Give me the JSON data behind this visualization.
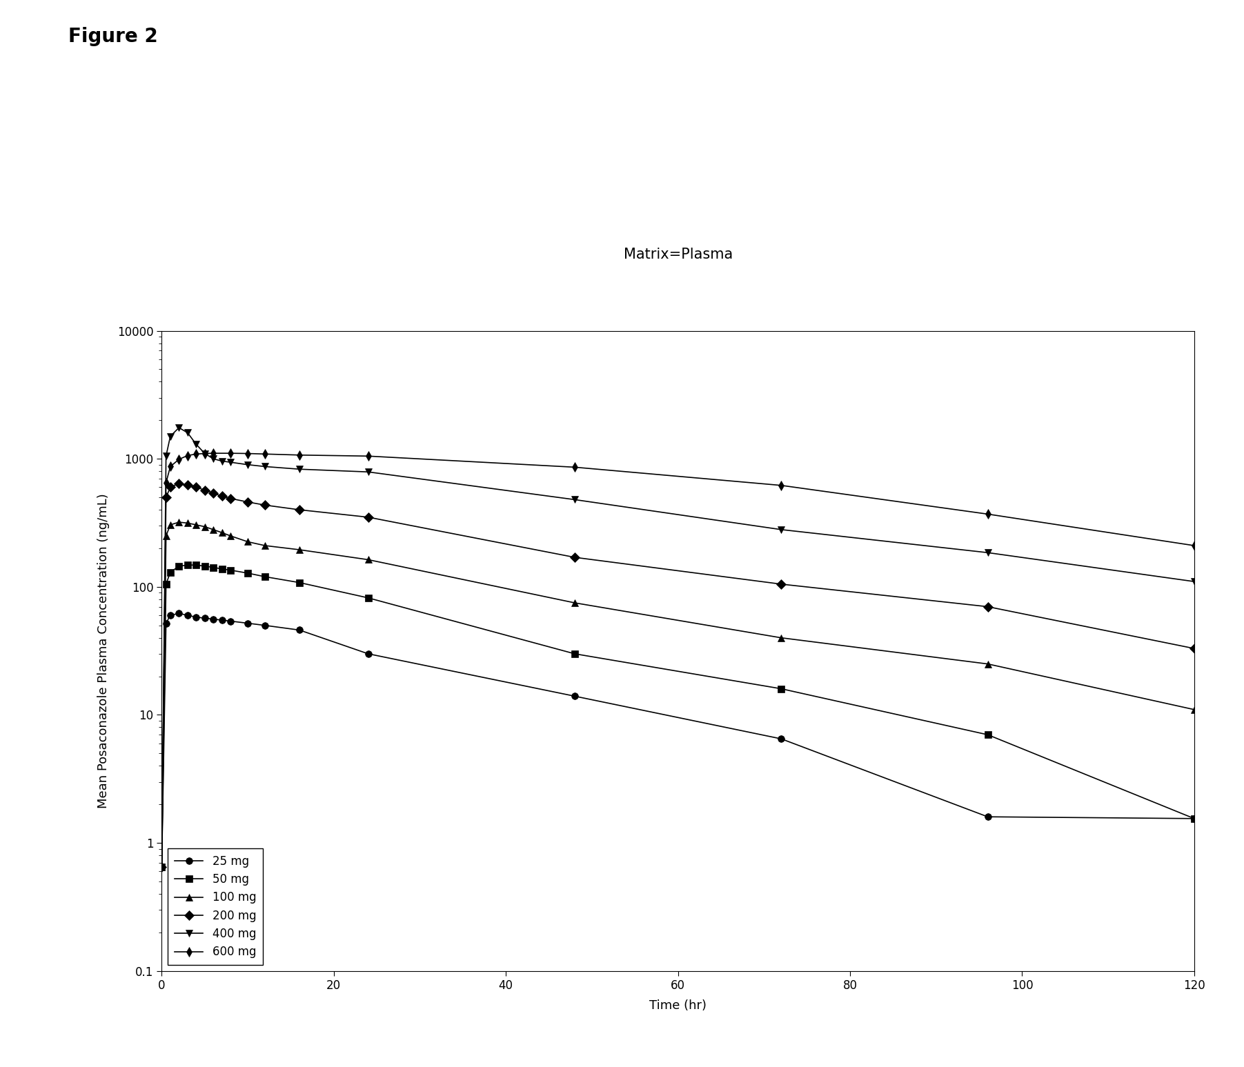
{
  "title": "Matrix=Plasma",
  "figure_label": "Figure 2",
  "xlabel": "Time (hr)",
  "ylabel": "Mean Posaconazole Plasma Concentration (ng/mL)",
  "xlim": [
    0,
    120
  ],
  "ylim": [
    0.1,
    10000
  ],
  "xticks": [
    0,
    20,
    40,
    60,
    80,
    100,
    120
  ],
  "series": [
    {
      "label": "25 mg",
      "marker": "o",
      "time": [
        0,
        0.5,
        1,
        2,
        3,
        4,
        5,
        6,
        7,
        8,
        10,
        12,
        16,
        24,
        48,
        72,
        96,
        120
      ],
      "conc": [
        0.65,
        52,
        60,
        62,
        60,
        58,
        57,
        56,
        55,
        54,
        52,
        50,
        46,
        30,
        14,
        6.5,
        1.6,
        1.55
      ]
    },
    {
      "label": "50 mg",
      "marker": "s",
      "time": [
        0,
        0.5,
        1,
        2,
        3,
        4,
        5,
        6,
        7,
        8,
        10,
        12,
        16,
        24,
        48,
        72,
        96,
        120
      ],
      "conc": [
        0.65,
        105,
        130,
        145,
        148,
        148,
        145,
        142,
        138,
        135,
        128,
        120,
        108,
        82,
        30,
        16,
        7,
        1.55
      ]
    },
    {
      "label": "100 mg",
      "marker": "^",
      "time": [
        0,
        0.5,
        1,
        2,
        3,
        4,
        5,
        6,
        7,
        8,
        10,
        12,
        16,
        24,
        48,
        72,
        96,
        120
      ],
      "conc": [
        0.65,
        250,
        305,
        320,
        315,
        305,
        295,
        280,
        265,
        250,
        225,
        210,
        195,
        163,
        75,
        40,
        25,
        11
      ]
    },
    {
      "label": "200 mg",
      "marker": "D",
      "time": [
        0,
        0.5,
        1,
        2,
        3,
        4,
        5,
        6,
        7,
        8,
        10,
        12,
        16,
        24,
        48,
        72,
        96,
        120
      ],
      "conc": [
        0.65,
        500,
        600,
        640,
        625,
        600,
        570,
        540,
        510,
        490,
        460,
        435,
        400,
        350,
        170,
        105,
        70,
        33
      ]
    },
    {
      "label": "400 mg",
      "marker": "v",
      "time": [
        0,
        0.5,
        1,
        2,
        3,
        4,
        5,
        6,
        7,
        8,
        10,
        12,
        16,
        24,
        48,
        72,
        96,
        120
      ],
      "conc": [
        0.65,
        1050,
        1500,
        1750,
        1600,
        1300,
        1100,
        1000,
        960,
        940,
        900,
        870,
        830,
        790,
        480,
        280,
        185,
        110
      ]
    },
    {
      "label": "600 mg",
      "marker": "d",
      "time": [
        0,
        0.5,
        1,
        2,
        3,
        4,
        5,
        6,
        8,
        10,
        12,
        16,
        24,
        48,
        72,
        96,
        120
      ],
      "conc": [
        0.65,
        650,
        870,
        990,
        1060,
        1090,
        1100,
        1105,
        1105,
        1100,
        1090,
        1070,
        1050,
        860,
        620,
        370,
        210
      ]
    }
  ],
  "line_color": "#000000",
  "background_color": "#ffffff",
  "title_fontsize": 15,
  "label_fontsize": 13,
  "tick_fontsize": 12,
  "legend_fontsize": 12,
  "figure_label_fontsize": 20,
  "linewidth": 1.2,
  "markersize": 7
}
